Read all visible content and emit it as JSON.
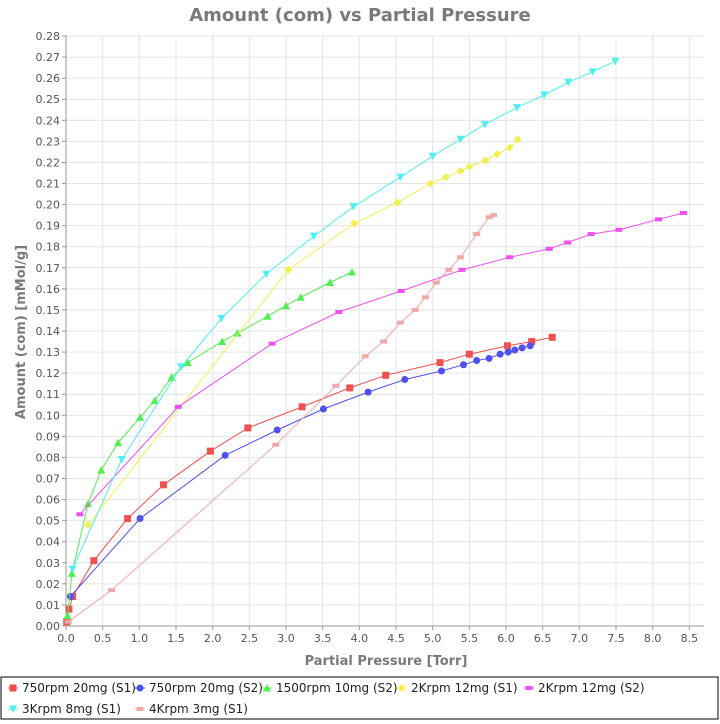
{
  "chart_data": {
    "type": "scatter",
    "title": "Amount (com) vs Partial Pressure",
    "xlabel": "Partial Pressure [Torr]",
    "ylabel": "Amount (com) [mMol/g]",
    "xlim": [
      0,
      8.7
    ],
    "ylim": [
      0,
      0.28
    ],
    "x_ticks": [
      "0.0",
      "0.5",
      "1.0",
      "1.5",
      "2.0",
      "2.5",
      "3.0",
      "3.5",
      "4.0",
      "4.5",
      "5.0",
      "5.5",
      "6.0",
      "6.5",
      "7.0",
      "7.5",
      "8.0",
      "8.5"
    ],
    "y_ticks": [
      "0.00",
      "0.01",
      "0.02",
      "0.03",
      "0.04",
      "0.05",
      "0.06",
      "0.07",
      "0.08",
      "0.09",
      "0.10",
      "0.11",
      "0.12",
      "0.13",
      "0.14",
      "0.15",
      "0.16",
      "0.17",
      "0.18",
      "0.19",
      "0.20",
      "0.21",
      "0.22",
      "0.23",
      "0.24",
      "0.25",
      "0.26",
      "0.27",
      "0.28"
    ],
    "grid": true,
    "legend_position": "bottom",
    "series": [
      {
        "name": "750rpm 20mg (S1)",
        "color": "#f05050",
        "marker": "square",
        "points": [
          [
            0.01,
            0.002
          ],
          [
            0.04,
            0.008
          ],
          [
            0.09,
            0.014
          ],
          [
            0.38,
            0.031
          ],
          [
            0.84,
            0.051
          ],
          [
            1.33,
            0.067
          ],
          [
            1.97,
            0.083
          ],
          [
            2.48,
            0.094
          ],
          [
            3.22,
            0.104
          ],
          [
            3.87,
            0.113
          ],
          [
            4.36,
            0.119
          ],
          [
            5.1,
            0.125
          ],
          [
            5.5,
            0.129
          ],
          [
            6.02,
            0.133
          ],
          [
            6.35,
            0.135
          ],
          [
            6.63,
            0.137
          ]
        ]
      },
      {
        "name": "750rpm 20mg (S2)",
        "color": "#5050f0",
        "marker": "circle",
        "points": [
          [
            0.06,
            0.014
          ],
          [
            1.01,
            0.051
          ],
          [
            2.17,
            0.081
          ],
          [
            2.88,
            0.093
          ],
          [
            3.51,
            0.103
          ],
          [
            4.12,
            0.111
          ],
          [
            4.62,
            0.117
          ],
          [
            5.12,
            0.121
          ],
          [
            5.42,
            0.124
          ],
          [
            5.6,
            0.126
          ],
          [
            5.77,
            0.127
          ],
          [
            5.92,
            0.129
          ],
          [
            6.03,
            0.13
          ],
          [
            6.12,
            0.131
          ],
          [
            6.22,
            0.132
          ],
          [
            6.33,
            0.133
          ]
        ]
      },
      {
        "name": "1500rpm 10mg (S2)",
        "color": "#50f050",
        "marker": "triangle-up",
        "points": [
          [
            0.02,
            0.005
          ],
          [
            0.08,
            0.025
          ],
          [
            0.3,
            0.058
          ],
          [
            0.48,
            0.074
          ],
          [
            0.71,
            0.087
          ],
          [
            1.01,
            0.099
          ],
          [
            1.21,
            0.107
          ],
          [
            1.44,
            0.118
          ],
          [
            1.66,
            0.125
          ],
          [
            2.13,
            0.135
          ],
          [
            2.34,
            0.139
          ],
          [
            2.75,
            0.147
          ],
          [
            3.0,
            0.152
          ],
          [
            3.2,
            0.156
          ],
          [
            3.6,
            0.163
          ],
          [
            3.9,
            0.168
          ]
        ]
      },
      {
        "name": "2Krpm 12mg (S1)",
        "color": "#f0f050",
        "marker": "diamond",
        "points": [
          [
            0.3,
            0.048
          ],
          [
            3.03,
            0.169
          ],
          [
            3.93,
            0.191
          ],
          [
            4.52,
            0.201
          ],
          [
            4.97,
            0.21
          ],
          [
            5.18,
            0.213
          ],
          [
            5.38,
            0.216
          ],
          [
            5.5,
            0.218
          ],
          [
            5.72,
            0.221
          ],
          [
            5.88,
            0.224
          ],
          [
            6.05,
            0.227
          ],
          [
            6.16,
            0.231
          ]
        ]
      },
      {
        "name": "2Krpm 12mg (S2)",
        "color": "#f050f0",
        "marker": "dash",
        "points": [
          [
            0.19,
            0.053
          ],
          [
            1.53,
            0.104
          ],
          [
            2.81,
            0.134
          ],
          [
            3.72,
            0.149
          ],
          [
            4.57,
            0.159
          ],
          [
            5.4,
            0.169
          ],
          [
            6.05,
            0.175
          ],
          [
            6.59,
            0.179
          ],
          [
            6.84,
            0.182
          ],
          [
            7.16,
            0.186
          ],
          [
            7.54,
            0.188
          ],
          [
            8.08,
            0.193
          ],
          [
            8.42,
            0.196
          ]
        ]
      },
      {
        "name": "3Krpm 8mg (S1)",
        "color": "#50f0f0",
        "marker": "triangle-down",
        "points": [
          [
            0.09,
            0.027
          ],
          [
            0.76,
            0.079
          ],
          [
            1.57,
            0.123
          ],
          [
            2.12,
            0.146
          ],
          [
            2.73,
            0.167
          ],
          [
            3.38,
            0.185
          ],
          [
            3.92,
            0.199
          ],
          [
            4.56,
            0.213
          ],
          [
            5.0,
            0.223
          ],
          [
            5.38,
            0.231
          ],
          [
            5.71,
            0.238
          ],
          [
            6.15,
            0.246
          ],
          [
            6.52,
            0.252
          ],
          [
            6.85,
            0.258
          ],
          [
            7.18,
            0.263
          ],
          [
            7.49,
            0.268
          ]
        ]
      },
      {
        "name": "4Krpm 3mg (S1)",
        "color": "#f0a8a8",
        "marker": "dash",
        "points": [
          [
            0.03,
            0.002
          ],
          [
            0.62,
            0.017
          ],
          [
            2.86,
            0.086
          ],
          [
            3.68,
            0.114
          ],
          [
            4.08,
            0.128
          ],
          [
            4.33,
            0.135
          ],
          [
            4.56,
            0.144
          ],
          [
            4.76,
            0.15
          ],
          [
            4.9,
            0.156
          ],
          [
            5.05,
            0.163
          ],
          [
            5.22,
            0.169
          ],
          [
            5.38,
            0.175
          ],
          [
            5.6,
            0.186
          ],
          [
            5.77,
            0.194
          ],
          [
            5.83,
            0.195
          ]
        ]
      }
    ]
  }
}
